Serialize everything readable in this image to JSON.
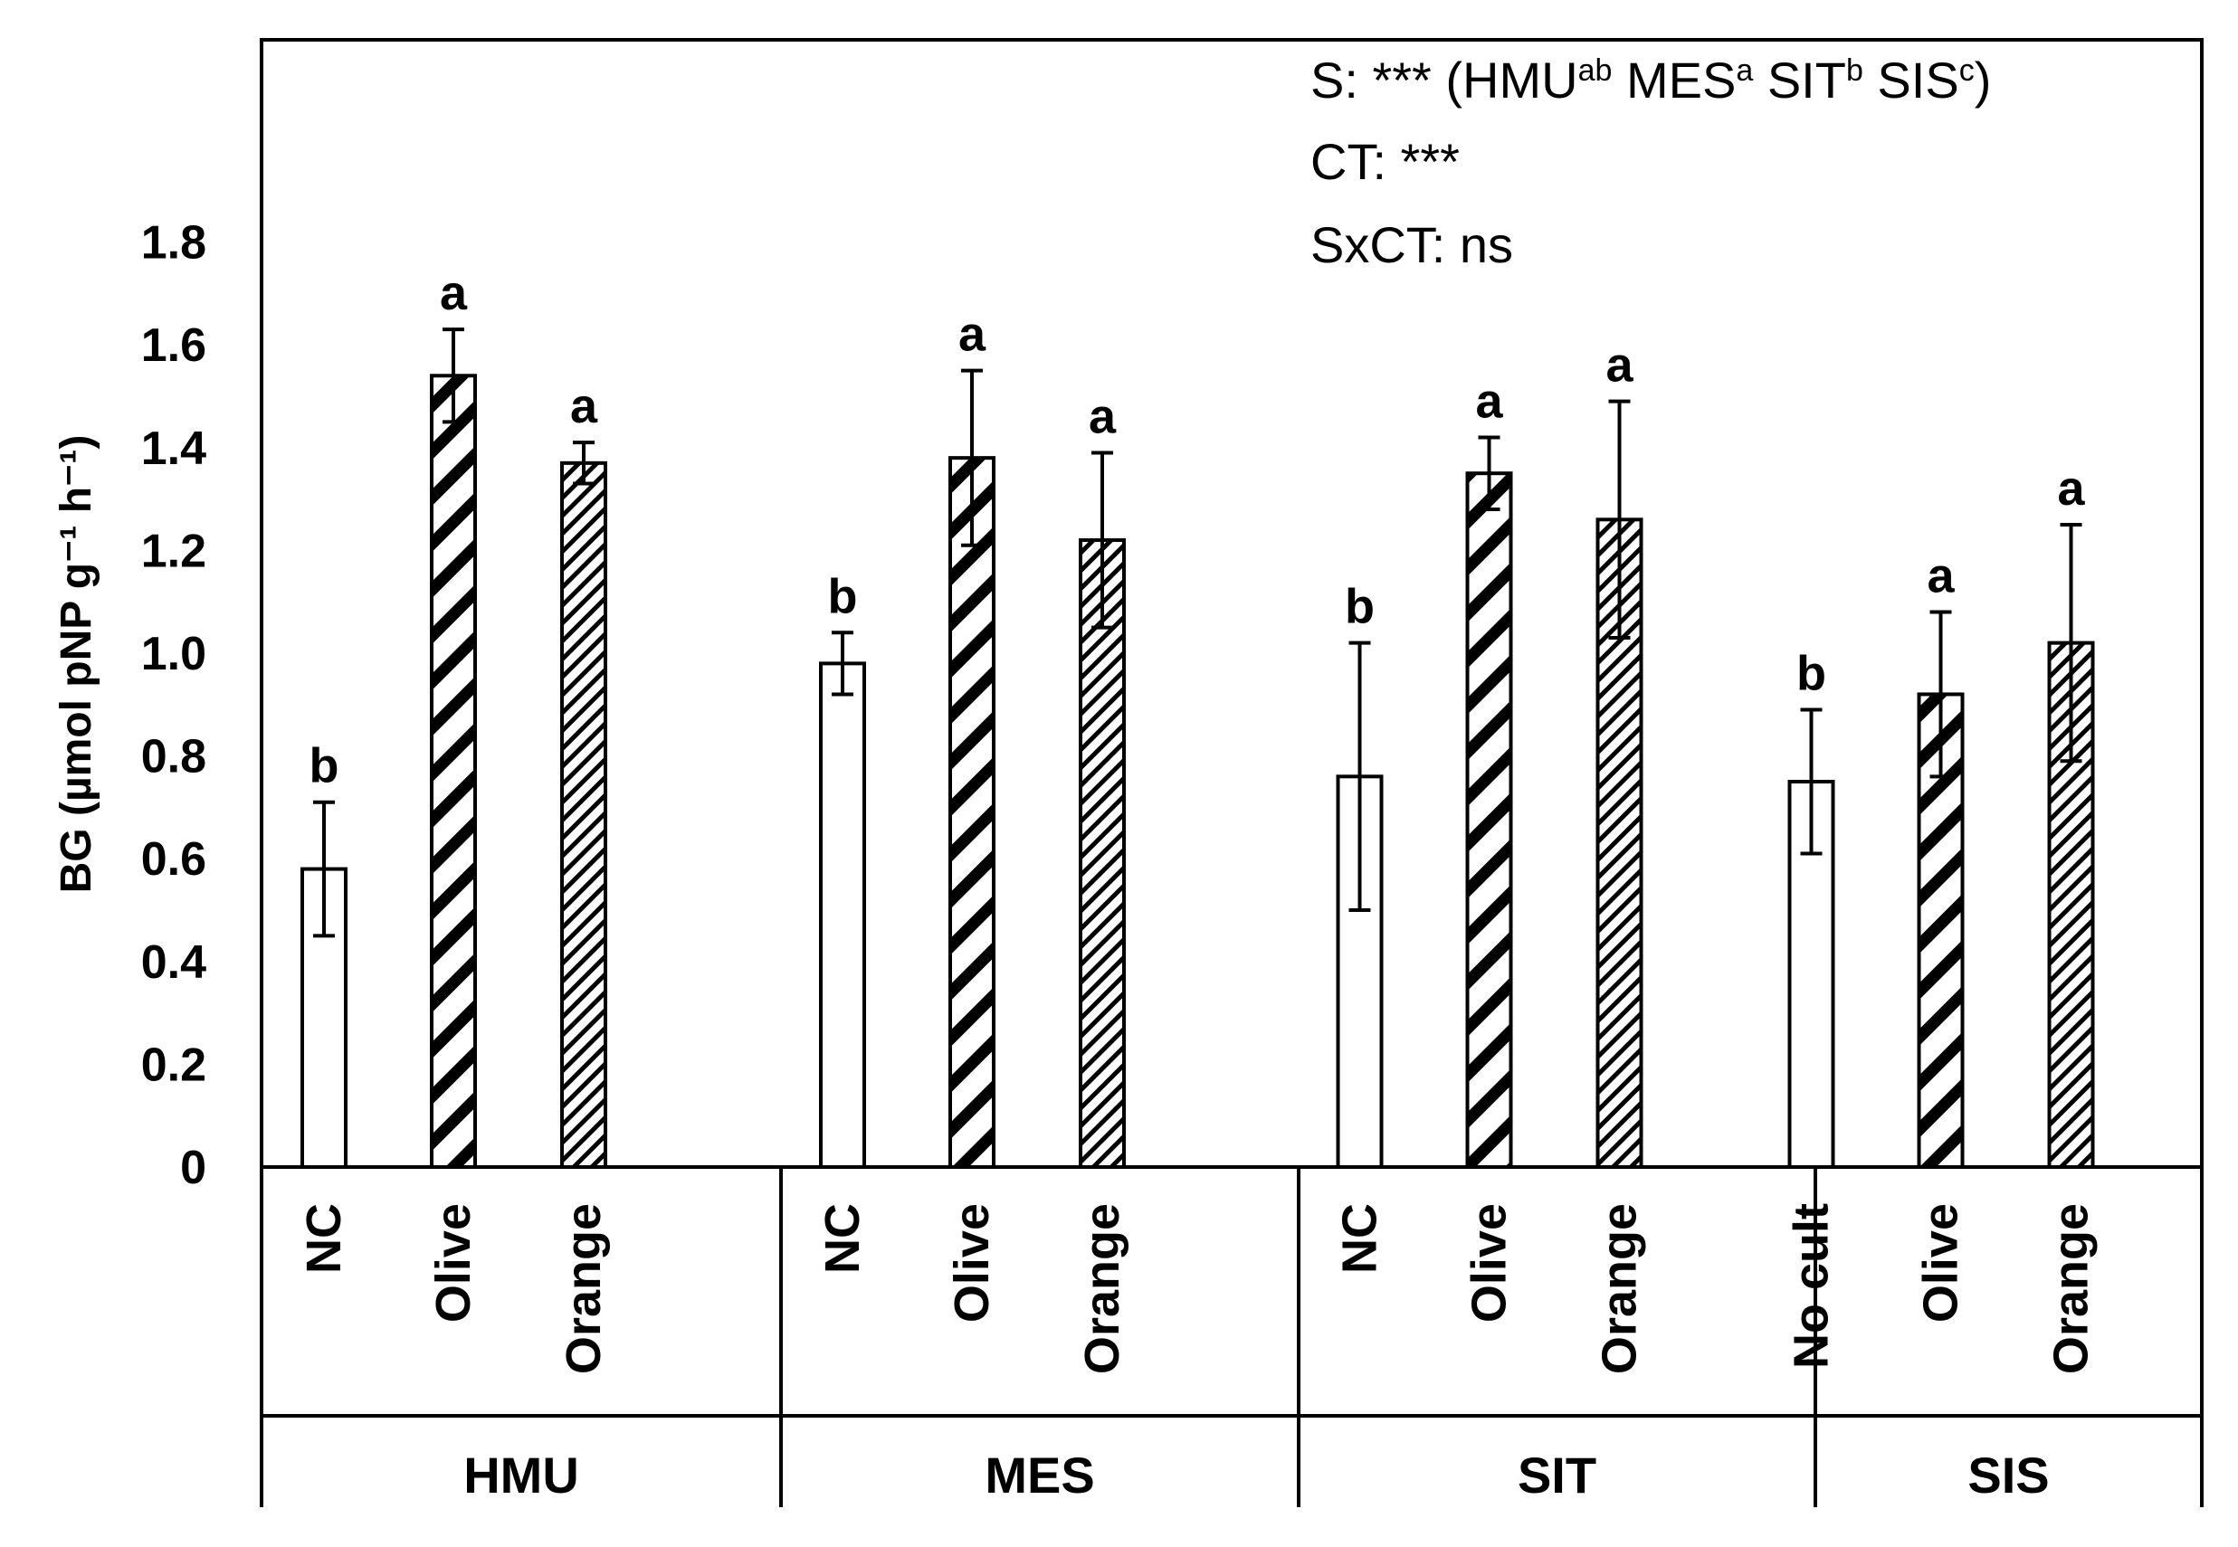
{
  "chart_data": {
    "type": "bar",
    "ylabel": "BG (µmol pNP g⁻¹ h⁻¹)",
    "ylim": [
      0,
      1.8
    ],
    "yticks": [
      "0",
      "0.2",
      "0.4",
      "0.6",
      "0.8",
      "1.0",
      "1.2",
      "1.4",
      "1.6",
      "1.8"
    ],
    "grid": false,
    "annotations": [
      {
        "id": "s",
        "parts": [
          {
            "text": "S: *** (HMU",
            "sup": false
          },
          {
            "text": "ab",
            "sup": true
          },
          {
            "text": " MES",
            "sup": false
          },
          {
            "text": "a",
            "sup": true
          },
          {
            "text": " SIT",
            "sup": false
          },
          {
            "text": "b",
            "sup": true
          },
          {
            "text": " SIS",
            "sup": false
          },
          {
            "text": "c",
            "sup": true
          },
          {
            "text": ")",
            "sup": false
          }
        ]
      },
      {
        "id": "ct",
        "parts": [
          {
            "text": "CT: ***",
            "sup": false
          }
        ]
      },
      {
        "id": "sxct",
        "parts": [
          {
            "text": "SxCT: ns",
            "sup": false
          }
        ]
      }
    ],
    "groups": [
      {
        "name": "HMU",
        "bars": [
          {
            "category": "NC",
            "value": 0.58,
            "error": 0.13,
            "letter": "b",
            "pattern": "open"
          },
          {
            "category": "Olive",
            "value": 1.54,
            "error": 0.09,
            "letter": "a",
            "pattern": "wide-hatch"
          },
          {
            "category": "Orange",
            "value": 1.37,
            "error": 0.04,
            "letter": "a",
            "pattern": "fine-hatch"
          }
        ]
      },
      {
        "name": "MES",
        "bars": [
          {
            "category": "NC",
            "value": 0.98,
            "error": 0.06,
            "letter": "b",
            "pattern": "open"
          },
          {
            "category": "Olive",
            "value": 1.38,
            "error": 0.17,
            "letter": "a",
            "pattern": "wide-hatch"
          },
          {
            "category": "Orange",
            "value": 1.22,
            "error": 0.17,
            "letter": "a",
            "pattern": "fine-hatch"
          }
        ]
      },
      {
        "name": "SIT",
        "bars": [
          {
            "category": "NC",
            "value": 0.76,
            "error": 0.26,
            "letter": "b",
            "pattern": "open"
          },
          {
            "category": "Olive",
            "value": 1.35,
            "error": 0.07,
            "letter": "a",
            "pattern": "wide-hatch"
          },
          {
            "category": "Orange",
            "value": 1.26,
            "error": 0.23,
            "letter": "a",
            "pattern": "fine-hatch"
          }
        ]
      },
      {
        "name": "SIS",
        "bars": [
          {
            "category": "No cult",
            "value": 0.75,
            "error": 0.14,
            "letter": "b",
            "pattern": "open"
          },
          {
            "category": "Olive",
            "value": 0.92,
            "error": 0.16,
            "letter": "a",
            "pattern": "wide-hatch"
          },
          {
            "category": "Orange",
            "value": 1.02,
            "error": 0.23,
            "letter": "a",
            "pattern": "fine-hatch"
          }
        ]
      }
    ]
  }
}
